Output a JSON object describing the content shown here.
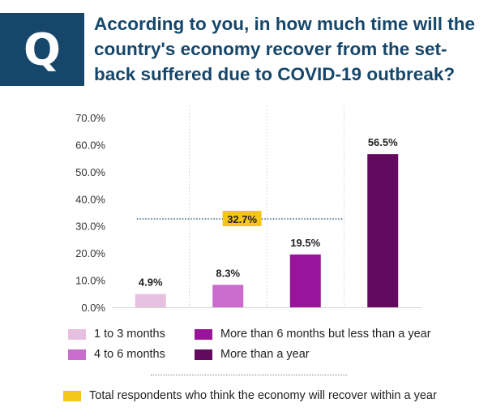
{
  "badge": {
    "letter": "Q",
    "color": "#16476b"
  },
  "title": "According to you, in how much time will the country's economy recover from the set-back suffered due to COVID-19 outbreak?",
  "chart_data": {
    "type": "bar",
    "categories": [
      "1 to 3 months",
      "4 to 6 months",
      "More than 6 months but less than a year",
      "More than a year"
    ],
    "values": [
      4.9,
      8.3,
      19.5,
      56.5
    ],
    "value_labels": [
      "4.9%",
      "8.3%",
      "19.5%",
      "56.5%"
    ],
    "colors": [
      "#e7bfe1",
      "#c96ccb",
      "#99139b",
      "#640a5e"
    ],
    "ylim": [
      0,
      70
    ],
    "yticks": [
      0,
      10,
      20,
      30,
      40,
      50,
      60,
      70
    ],
    "ytick_labels": [
      "0.0%",
      "10.0%",
      "20.0%",
      "30.0%",
      "40.0%",
      "50.0%",
      "60.0%",
      "70.0%"
    ],
    "xlabel": "",
    "ylabel": "",
    "grid": "vertical-dotted",
    "annotation": {
      "text": "32.7%",
      "value": 32.7,
      "spans_categories": [
        0,
        2
      ],
      "color": "#f5c518"
    }
  },
  "legend": [
    {
      "label": "1 to 3 months",
      "color": "#e7bfe1"
    },
    {
      "label": "4 to 6 months",
      "color": "#c96ccb"
    },
    {
      "label": "More than 6 months but less than a year",
      "color": "#99139b"
    },
    {
      "label": "More than a year",
      "color": "#640a5e"
    }
  ],
  "footnote": {
    "label": "Total respondents who think the economy will recover within a year",
    "color": "#f5c518"
  }
}
